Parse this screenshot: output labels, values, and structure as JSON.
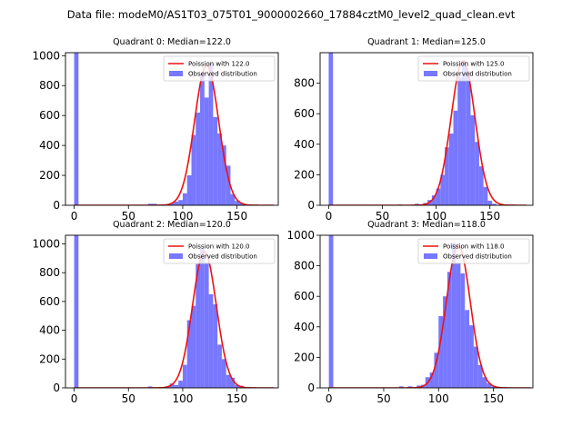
{
  "figure": {
    "suptitle": "Data file: modeM0/AS1T03_075T01_9000002660_17884cztM0_level2_quad_clean.evt"
  },
  "colors": {
    "hist": "#7777ff",
    "fit": "#ee1111",
    "axis": "#000000"
  },
  "chart_data": [
    {
      "type": "bar",
      "title": "Quadrant 0: Median=122.0",
      "xlim": [
        -8,
        188
      ],
      "ylim": [
        0,
        1020
      ],
      "xticks": [
        0,
        50,
        100,
        150
      ],
      "yticks": [
        0,
        200,
        400,
        600,
        800,
        1000
      ],
      "bin_width": 4,
      "zero_bin": {
        "x": 0,
        "value": 1020
      },
      "bins": [
        {
          "x": 68,
          "value": 10
        },
        {
          "x": 72,
          "value": 10
        },
        {
          "x": 88,
          "value": 15
        },
        {
          "x": 92,
          "value": 25
        },
        {
          "x": 96,
          "value": 35
        },
        {
          "x": 100,
          "value": 80
        },
        {
          "x": 104,
          "value": 200
        },
        {
          "x": 108,
          "value": 470
        },
        {
          "x": 112,
          "value": 620
        },
        {
          "x": 116,
          "value": 880
        },
        {
          "x": 120,
          "value": 720
        },
        {
          "x": 124,
          "value": 950
        },
        {
          "x": 128,
          "value": 590
        },
        {
          "x": 132,
          "value": 480
        },
        {
          "x": 136,
          "value": 400
        },
        {
          "x": 140,
          "value": 265
        },
        {
          "x": 144,
          "value": 75
        },
        {
          "x": 148,
          "value": 30
        },
        {
          "x": 152,
          "value": 15
        }
      ],
      "fit": {
        "label": "Poission with 122.0",
        "mean": 122.0,
        "scale": 935
      },
      "legend": {
        "fit": "Poission with 122.0",
        "hist": "Observed distribution",
        "loc": "upper right"
      }
    },
    {
      "type": "bar",
      "title": "Quadrant 1: Median=125.0",
      "xlim": [
        -8,
        190
      ],
      "ylim": [
        0,
        1000
      ],
      "xticks": [
        0,
        50,
        100,
        150
      ],
      "yticks": [
        0,
        200,
        400,
        600,
        800
      ],
      "bin_width": 4,
      "zero_bin": {
        "x": 0,
        "value": 1000
      },
      "bins": [
        {
          "x": 64,
          "value": 5
        },
        {
          "x": 80,
          "value": 10
        },
        {
          "x": 88,
          "value": 15
        },
        {
          "x": 92,
          "value": 35
        },
        {
          "x": 96,
          "value": 65
        },
        {
          "x": 100,
          "value": 110
        },
        {
          "x": 104,
          "value": 200
        },
        {
          "x": 108,
          "value": 380
        },
        {
          "x": 112,
          "value": 470
        },
        {
          "x": 116,
          "value": 620
        },
        {
          "x": 120,
          "value": 840
        },
        {
          "x": 124,
          "value": 950
        },
        {
          "x": 128,
          "value": 880
        },
        {
          "x": 132,
          "value": 590
        },
        {
          "x": 136,
          "value": 415
        },
        {
          "x": 140,
          "value": 255
        },
        {
          "x": 144,
          "value": 120
        },
        {
          "x": 148,
          "value": 30
        },
        {
          "x": 152,
          "value": 10
        }
      ],
      "fit": {
        "label": "Poission with 125.0",
        "mean": 125.0,
        "scale": 945
      },
      "legend": {
        "fit": "Poission with 125.0",
        "hist": "Observed distribution",
        "loc": "upper right"
      }
    },
    {
      "type": "bar",
      "title": "Quadrant 2: Median=120.0",
      "xlim": [
        -8,
        188
      ],
      "ylim": [
        0,
        1060
      ],
      "xticks": [
        0,
        50,
        100,
        150
      ],
      "yticks": [
        0,
        200,
        400,
        600,
        800,
        1000
      ],
      "bin_width": 4,
      "zero_bin": {
        "x": 0,
        "value": 1060
      },
      "bins": [
        {
          "x": 68,
          "value": 10
        },
        {
          "x": 84,
          "value": 10
        },
        {
          "x": 88,
          "value": 30
        },
        {
          "x": 92,
          "value": 20
        },
        {
          "x": 96,
          "value": 50
        },
        {
          "x": 100,
          "value": 160
        },
        {
          "x": 104,
          "value": 470
        },
        {
          "x": 108,
          "value": 570
        },
        {
          "x": 112,
          "value": 860
        },
        {
          "x": 116,
          "value": 970
        },
        {
          "x": 120,
          "value": 870
        },
        {
          "x": 124,
          "value": 650
        },
        {
          "x": 128,
          "value": 580
        },
        {
          "x": 132,
          "value": 300
        },
        {
          "x": 136,
          "value": 200
        },
        {
          "x": 140,
          "value": 90
        },
        {
          "x": 144,
          "value": 70
        },
        {
          "x": 148,
          "value": 20
        },
        {
          "x": 152,
          "value": 15
        }
      ],
      "fit": {
        "label": "Poission with 120.0",
        "mean": 120.0,
        "scale": 945
      },
      "legend": {
        "fit": "Poission with 120.0",
        "hist": "Observed distribution",
        "loc": "upper right"
      }
    },
    {
      "type": "bar",
      "title": "Quadrant 3: Median=118.0",
      "xlim": [
        -8,
        186
      ],
      "ylim": [
        0,
        1000
      ],
      "xticks": [
        0,
        50,
        100,
        150
      ],
      "yticks": [
        0,
        200,
        400,
        600,
        800,
        1000
      ],
      "bin_width": 4,
      "zero_bin": {
        "x": 0,
        "value": 1000
      },
      "bins": [
        {
          "x": 64,
          "value": 10
        },
        {
          "x": 72,
          "value": 10
        },
        {
          "x": 80,
          "value": 15
        },
        {
          "x": 84,
          "value": 20
        },
        {
          "x": 88,
          "value": 70
        },
        {
          "x": 92,
          "value": 100
        },
        {
          "x": 96,
          "value": 230
        },
        {
          "x": 100,
          "value": 470
        },
        {
          "x": 104,
          "value": 600
        },
        {
          "x": 108,
          "value": 760
        },
        {
          "x": 112,
          "value": 950
        },
        {
          "x": 116,
          "value": 820
        },
        {
          "x": 120,
          "value": 750
        },
        {
          "x": 124,
          "value": 510
        },
        {
          "x": 128,
          "value": 410
        },
        {
          "x": 132,
          "value": 270
        },
        {
          "x": 136,
          "value": 150
        },
        {
          "x": 140,
          "value": 70
        },
        {
          "x": 144,
          "value": 30
        },
        {
          "x": 148,
          "value": 10
        }
      ],
      "fit": {
        "label": "Poission with 118.0",
        "mean": 118.0,
        "scale": 935
      },
      "legend": {
        "fit": "Poission with 118.0",
        "hist": "Observed distribution",
        "loc": "upper right"
      }
    }
  ]
}
